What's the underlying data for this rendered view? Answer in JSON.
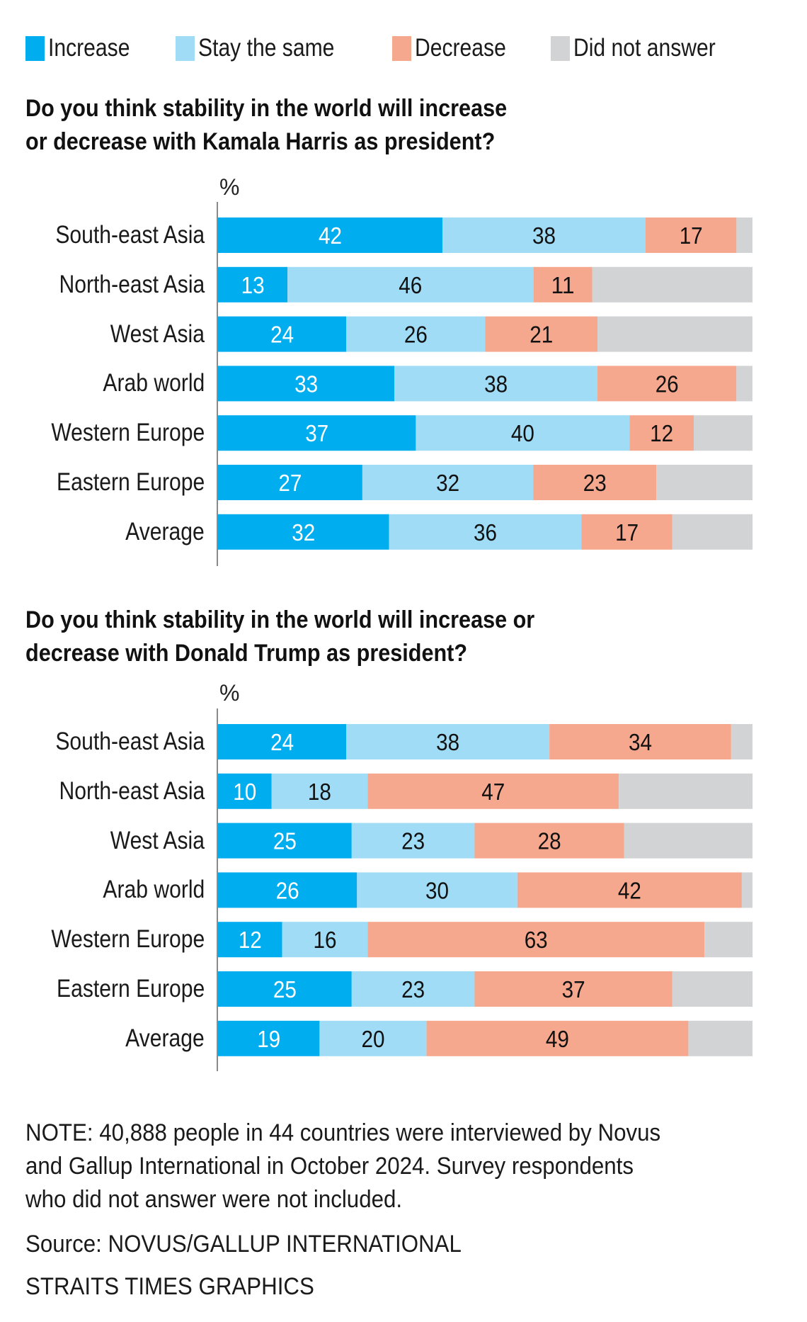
{
  "legend": [
    {
      "key": "increase",
      "label": "Increase",
      "color": "#00aeef"
    },
    {
      "key": "same",
      "label": "Stay the same",
      "color": "#a0dcf6"
    },
    {
      "key": "decrease",
      "label": "Decrease",
      "color": "#f6a88e"
    },
    {
      "key": "no_answer",
      "label": "Did not answer",
      "color": "#d1d3d4"
    }
  ],
  "chart_data": [
    {
      "type": "bar",
      "orientation": "horizontal",
      "stacked": true,
      "title_lines": [
        "Do you think stability in the world will increase",
        "or decrease with Kamala Harris as president?"
      ],
      "unit_label": "%",
      "xlim": [
        0,
        100
      ],
      "grid": false,
      "legend_position": "top-left",
      "categories": [
        "South-east Asia",
        "North-east Asia",
        "West Asia",
        "Arab world",
        "Western Europe",
        "Eastern Europe",
        "Average"
      ],
      "series": [
        {
          "name": "Increase",
          "values": [
            42,
            13,
            24,
            33,
            37,
            27,
            32
          ]
        },
        {
          "name": "Stay the same",
          "values": [
            38,
            46,
            26,
            38,
            40,
            32,
            36
          ]
        },
        {
          "name": "Decrease",
          "values": [
            17,
            11,
            21,
            26,
            12,
            23,
            17
          ]
        },
        {
          "name": "Did not answer",
          "values": [
            3,
            30,
            29,
            3,
            11,
            18,
            15
          ]
        }
      ]
    },
    {
      "type": "bar",
      "orientation": "horizontal",
      "stacked": true,
      "title_lines": [
        "Do you think stability in the world will increase or",
        "decrease with Donald Trump as president?"
      ],
      "unit_label": "%",
      "xlim": [
        0,
        100
      ],
      "grid": false,
      "legend_position": "top-left",
      "categories": [
        "South-east Asia",
        "North-east Asia",
        "West Asia",
        "Arab world",
        "Western Europe",
        "Eastern Europe",
        "Average"
      ],
      "series": [
        {
          "name": "Increase",
          "values": [
            24,
            10,
            25,
            26,
            12,
            25,
            19
          ]
        },
        {
          "name": "Stay the same",
          "values": [
            38,
            18,
            23,
            30,
            16,
            23,
            20
          ]
        },
        {
          "name": "Decrease",
          "values": [
            34,
            47,
            28,
            42,
            63,
            37,
            49
          ]
        },
        {
          "name": "Did not answer",
          "values": [
            4,
            25,
            24,
            2,
            9,
            15,
            12
          ]
        }
      ]
    }
  ],
  "footer": {
    "note_lines": [
      "NOTE: 40,888 people in 44 countries were interviewed by Novus",
      "and Gallup International in October 2024. Survey respondents",
      "who did not answer were not included."
    ],
    "source": "Source: NOVUS/GALLUP INTERNATIONAL",
    "credit": "STRAITS TIMES GRAPHICS"
  }
}
